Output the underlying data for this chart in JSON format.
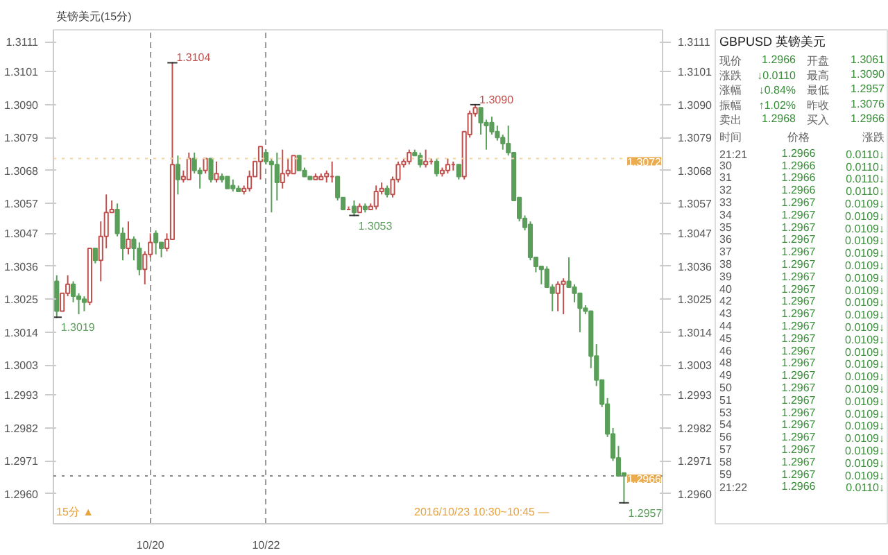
{
  "chart_data": [
    {
      "type": "candlestick",
      "title": "英镑美元(15分)",
      "categories": [
        null,
        null,
        null,
        null,
        null,
        null,
        null,
        null,
        null,
        null,
        null,
        null,
        null,
        null,
        null,
        null,
        null,
        "10/20",
        null,
        null,
        null,
        null,
        null,
        null,
        null,
        null,
        null,
        null,
        null,
        null,
        null,
        null,
        null,
        null,
        null,
        null,
        null,
        null,
        "10/22",
        null,
        null,
        null,
        null,
        null,
        null,
        null,
        null,
        null,
        null,
        null,
        null,
        null,
        null,
        null,
        null,
        null,
        null,
        null,
        null,
        null,
        null,
        null,
        null,
        null,
        null,
        null,
        null,
        null,
        null,
        null,
        null,
        null,
        null,
        null,
        null,
        null,
        null,
        null,
        null,
        null,
        null,
        null,
        null,
        null,
        null,
        null,
        null,
        null,
        null,
        null,
        null,
        null,
        null,
        null,
        null,
        null,
        null,
        null,
        null,
        null,
        null,
        null,
        null,
        null
      ],
      "ohlc": [
        [
          1.3031,
          1.3033,
          1.3019,
          1.3021
        ],
        [
          1.3021,
          1.3027,
          1.3021,
          1.3027
        ],
        [
          1.3027,
          1.3033,
          1.3026,
          1.303
        ],
        [
          1.303,
          1.3031,
          1.3024,
          1.3026
        ],
        [
          1.3026,
          1.3027,
          1.302,
          1.3025
        ],
        [
          1.3025,
          1.3026,
          1.3021,
          1.3024
        ],
        [
          1.3024,
          1.3042,
          1.3023,
          1.3042
        ],
        [
          1.3042,
          1.3042,
          1.3037,
          1.3038
        ],
        [
          1.3038,
          1.3051,
          1.3031,
          1.3046
        ],
        [
          1.3046,
          1.306,
          1.3042,
          1.3054
        ],
        [
          1.3054,
          1.3058,
          1.3054,
          1.3055
        ],
        [
          1.3055,
          1.3057,
          1.3046,
          1.3047
        ],
        [
          1.3047,
          1.3049,
          1.3038,
          1.3042
        ],
        [
          1.3042,
          1.3051,
          1.304,
          1.3045
        ],
        [
          1.3045,
          1.3046,
          1.3038,
          1.3042
        ],
        [
          1.3042,
          1.3044,
          1.3033,
          1.3035
        ],
        [
          1.3035,
          1.3041,
          1.303,
          1.304
        ],
        [
          1.304,
          1.3047,
          1.3039,
          1.3044
        ],
        [
          1.3047,
          1.3048,
          1.304,
          1.3044
        ],
        [
          1.3044,
          1.3044,
          1.3039,
          1.3042
        ],
        [
          1.3042,
          1.3047,
          1.3041,
          1.3045
        ],
        [
          1.3045,
          1.3104,
          1.3045,
          1.307
        ],
        [
          1.307,
          1.3073,
          1.306,
          1.3065
        ],
        [
          1.3065,
          1.3068,
          1.3064,
          1.3066
        ],
        [
          1.3065,
          1.3074,
          1.3065,
          1.3072
        ],
        [
          1.3072,
          1.3074,
          1.3067,
          1.3068
        ],
        [
          1.3068,
          1.3069,
          1.3062,
          1.3067
        ],
        [
          1.3068,
          1.3072,
          1.3067,
          1.3072
        ],
        [
          1.3072,
          1.3072,
          1.3064,
          1.3065
        ],
        [
          1.3065,
          1.3071,
          1.3064,
          1.3067
        ],
        [
          1.3066,
          1.3067,
          1.3064,
          1.3065
        ],
        [
          1.3066,
          1.3066,
          1.3062,
          1.3062
        ],
        [
          1.3063,
          1.3065,
          1.3061,
          1.3062
        ],
        [
          1.3062,
          1.3063,
          1.3061,
          1.3061
        ],
        [
          1.3061,
          1.3063,
          1.306,
          1.3062
        ],
        [
          1.3062,
          1.3068,
          1.3061,
          1.3066
        ],
        [
          1.3066,
          1.3071,
          1.3066,
          1.3071
        ],
        [
          1.3071,
          1.3076,
          1.3065,
          1.3076
        ],
        [
          1.3074,
          1.3075,
          1.307,
          1.3071
        ],
        [
          1.3071,
          1.3072,
          1.3054,
          1.307
        ],
        [
          1.307,
          1.3074,
          1.3058,
          1.3064
        ],
        [
          1.3064,
          1.3075,
          1.3062,
          1.3067
        ],
        [
          1.3067,
          1.3072,
          1.3066,
          1.3068
        ],
        [
          1.3067,
          1.3073,
          1.3067,
          1.3073
        ],
        [
          1.3073,
          1.3073,
          1.3068,
          1.3068
        ],
        [
          1.3068,
          1.3069,
          1.3066,
          1.3066
        ],
        [
          1.3066,
          1.3066,
          1.3065,
          1.3065
        ],
        [
          1.3065,
          1.3067,
          1.3065,
          1.3066
        ],
        [
          1.3065,
          1.3067,
          1.3065,
          1.3066
        ],
        [
          1.3066,
          1.3068,
          1.3064,
          1.3067
        ],
        [
          1.3066,
          1.3071,
          1.3064,
          1.3066
        ],
        [
          1.3066,
          1.3066,
          1.3058,
          1.3059
        ],
        [
          1.3059,
          1.3059,
          1.3055,
          1.3055
        ],
        [
          1.3055,
          1.3056,
          1.3055,
          1.3055
        ],
        [
          1.3056,
          1.3058,
          1.3053,
          1.3054
        ],
        [
          1.3054,
          1.3057,
          1.3054,
          1.3056
        ],
        [
          1.3056,
          1.3057,
          1.3054,
          1.3055
        ],
        [
          1.3055,
          1.3057,
          1.3055,
          1.3056
        ],
        [
          1.3056,
          1.3063,
          1.3055,
          1.3061
        ],
        [
          1.3061,
          1.3064,
          1.306,
          1.3062
        ],
        [
          1.3062,
          1.3063,
          1.3059,
          1.306
        ],
        [
          1.306,
          1.3066,
          1.3059,
          1.3065
        ],
        [
          1.3065,
          1.3071,
          1.3064,
          1.307
        ],
        [
          1.307,
          1.3072,
          1.3069,
          1.3071
        ],
        [
          1.3071,
          1.3075,
          1.307,
          1.3074
        ],
        [
          1.3074,
          1.3075,
          1.3073,
          1.3073
        ],
        [
          1.3073,
          1.3074,
          1.3069,
          1.307
        ],
        [
          1.307,
          1.3075,
          1.3069,
          1.3071
        ],
        [
          1.3071,
          1.3072,
          1.307,
          1.3071
        ],
        [
          1.3071,
          1.3072,
          1.3066,
          1.3067
        ],
        [
          1.3067,
          1.3069,
          1.3066,
          1.3068
        ],
        [
          1.3068,
          1.3072,
          1.3067,
          1.307
        ],
        [
          1.307,
          1.3071,
          1.3068,
          1.307
        ],
        [
          1.307,
          1.307,
          1.3065,
          1.3066
        ],
        [
          1.3066,
          1.3081,
          1.3065,
          1.3081
        ],
        [
          1.308,
          1.3088,
          1.3079,
          1.3087
        ],
        [
          1.3087,
          1.309,
          1.3086,
          1.3089
        ],
        [
          1.3089,
          1.3089,
          1.308,
          1.3084
        ],
        [
          1.3084,
          1.3085,
          1.3075,
          1.3083
        ],
        [
          1.3084,
          1.3086,
          1.308,
          1.3081
        ],
        [
          1.3081,
          1.3083,
          1.3078,
          1.3079
        ],
        [
          1.3079,
          1.308,
          1.3075,
          1.3077
        ],
        [
          1.3077,
          1.3083,
          1.3073,
          1.3074
        ],
        [
          1.3074,
          1.3074,
          1.3058,
          1.3058
        ],
        [
          1.3059,
          1.3059,
          1.3051,
          1.3052
        ],
        [
          1.3052,
          1.3053,
          1.3048,
          1.3049
        ],
        [
          1.305,
          1.3051,
          1.3038,
          1.3039
        ],
        [
          1.3039,
          1.3039,
          1.3034,
          1.3036
        ],
        [
          1.3036,
          1.3036,
          1.303,
          1.3035
        ],
        [
          1.3035,
          1.3036,
          1.3029,
          1.3029
        ],
        [
          1.3029,
          1.303,
          1.3021,
          1.3027
        ],
        [
          1.3027,
          1.3031,
          1.3021,
          1.303
        ],
        [
          1.303,
          1.3032,
          1.302,
          1.3031
        ],
        [
          1.3031,
          1.3039,
          1.3029,
          1.3029
        ],
        [
          1.3029,
          1.303,
          1.3024,
          1.3027
        ],
        [
          1.3027,
          1.3027,
          1.3014,
          1.3022
        ],
        [
          1.3022,
          1.3023,
          1.302,
          1.3021
        ],
        [
          1.3021,
          1.3021,
          1.3002,
          1.3006
        ],
        [
          1.3006,
          1.301,
          1.2996,
          1.2998
        ],
        [
          1.2998,
          1.2998,
          1.2989,
          1.299
        ],
        [
          1.299,
          1.2992,
          1.2979,
          1.298
        ],
        [
          1.298,
          1.2982,
          1.2971,
          1.2972
        ],
        [
          1.2972,
          1.2976,
          1.2966,
          1.2966
        ],
        [
          1.2967,
          1.2967,
          1.2957,
          1.2966
        ]
      ],
      "colors": [
        "#5a9e5a",
        "#c0504d",
        "#c0504d",
        "#5a9e5a",
        "#5a9e5a",
        "#5a9e5a",
        "#c0504d",
        "#5a9e5a",
        "#c0504d",
        "#c0504d",
        "#c0504d",
        "#5a9e5a",
        "#5a9e5a",
        "#c0504d",
        "#5a9e5a",
        "#5a9e5a",
        "#c0504d",
        "#c0504d",
        "#5a9e5a",
        "#5a9e5a",
        "#c0504d",
        "#c0504d",
        "#5a9e5a",
        "#c0504d",
        "#c0504d",
        "#5a9e5a",
        "#5a9e5a",
        "#c0504d",
        "#5a9e5a",
        "#c0504d",
        "#5a9e5a",
        "#5a9e5a",
        "#5a9e5a",
        "#5a9e5a",
        "#c0504d",
        "#c0504d",
        "#c0504d",
        "#c0504d",
        "#5a9e5a",
        "#5a9e5a",
        "#5a9e5a",
        "#c0504d",
        "#c0504d",
        "#c0504d",
        "#5a9e5a",
        "#5a9e5a",
        "#5a9e5a",
        "#c0504d",
        "#c0504d",
        "#c0504d",
        "#c0504d",
        "#5a9e5a",
        "#5a9e5a",
        "#c0504d",
        "#5a9e5a",
        "#c0504d",
        "#5a9e5a",
        "#c0504d",
        "#c0504d",
        "#c0504d",
        "#5a9e5a",
        "#c0504d",
        "#c0504d",
        "#c0504d",
        "#c0504d",
        "#5a9e5a",
        "#5a9e5a",
        "#c0504d",
        "#c0504d",
        "#5a9e5a",
        "#c0504d",
        "#c0504d",
        "#c0504d",
        "#5a9e5a",
        "#c0504d",
        "#c0504d",
        "#c0504d",
        "#5a9e5a",
        "#5a9e5a",
        "#5a9e5a",
        "#5a9e5a",
        "#5a9e5a",
        "#5a9e5a",
        "#5a9e5a",
        "#5a9e5a",
        "#5a9e5a",
        "#5a9e5a",
        "#5a9e5a",
        "#5a9e5a",
        "#5a9e5a",
        "#5a9e5a",
        "#c0504d",
        "#c0504d",
        "#5a9e5a",
        "#5a9e5a",
        "#5a9e5a",
        "#5a9e5a",
        "#5a9e5a",
        "#5a9e5a",
        "#5a9e5a",
        "#5a9e5a",
        "#5a9e5a",
        "#5a9e5a",
        "#5a9e5a"
      ],
      "ylim": [
        1.295,
        1.3115
      ],
      "yticks": [
        {
          "value": 1.296,
          "label": "1.2960"
        },
        1.2971,
        1.2982,
        1.2993,
        1.3003,
        1.3014,
        1.3025,
        1.3036,
        1.3047,
        1.3057,
        1.3068,
        1.3079,
        {
          "value": 1.309,
          "label": "1.3090"
        },
        1.3101,
        1.3111
      ],
      "y2lim": [
        1.295,
        1.3115
      ],
      "y2ticks": [
        {
          "value": 1.296,
          "label": "1.2960"
        },
        1.2971,
        1.2982,
        1.2993,
        1.3003,
        1.3014,
        1.3025,
        1.3036,
        1.3047,
        1.3057,
        1.3068,
        1.3079,
        {
          "value": 1.309,
          "label": "1.3090"
        },
        1.3101,
        1.3111
      ],
      "grid": "x",
      "ref_lines": [
        {
          "axis": "y",
          "value": 1.2966,
          "label": "1.2966",
          "line_style": "dotted",
          "color": "#888888"
        },
        {
          "axis": "y",
          "value": 1.3072,
          "label": "1.3072",
          "line_style": "dotted",
          "color": "#f3d3a0"
        }
      ],
      "annotations": [
        "1.3104",
        {
          "text": "1.3019",
          "y": 1.3019
        },
        {
          "text": "1.3053",
          "y": 1.3053
        },
        "1.3090",
        "1.2957",
        "15分 ▲",
        "2016/10/23 10:30~10:45 —"
      ]
    },
    {
      "type": "other",
      "title": "GBPUSD 英镑美元",
      "annotations": [
        "现价",
        "1.2966",
        "开盘",
        "1.3061",
        "涨跌",
        "↓0.0110",
        "最高",
        "1.3090",
        "涨幅",
        "↓0.84%",
        "最低",
        "1.2957",
        "振幅",
        "↑1.02%",
        "昨收",
        "1.3076",
        "卖出",
        "1.2968",
        "买入",
        "1.2966",
        "时间",
        "价格",
        "涨跌",
        "21:21",
        "1.2966",
        "0.0110↓",
        "30",
        "1.2966",
        "0.0110↓",
        "31",
        "1.2966",
        "0.0110↓",
        "32",
        "1.2966",
        "0.0110↓",
        "33",
        "1.2967",
        "0.0109↓",
        "34",
        "1.2967",
        "0.0109↓",
        "35",
        "1.2967",
        "0.0109↓",
        "36",
        "1.2967",
        "0.0109↓",
        "37",
        "1.2967",
        "0.0109↓",
        "38",
        "1.2967",
        "0.0109↓",
        "39",
        "1.2967",
        "0.0109↓",
        "40",
        "1.2967",
        "0.0109↓",
        "42",
        "1.2967",
        "0.0109↓",
        "43",
        "1.2967",
        "0.0109↓",
        "44",
        "1.2967",
        "0.0109↓",
        "45",
        "1.2967",
        "0.0109↓",
        "46",
        "1.2967",
        "0.0109↓",
        "48",
        "1.2967",
        "0.0109↓",
        "49",
        "1.2967",
        "0.0109↓",
        "50",
        "1.2967",
        "0.0109↓",
        "51",
        "1.2967",
        "0.0109↓",
        "53",
        "1.2967",
        "0.0109↓",
        "54",
        "1.2967",
        "0.0109↓",
        "56",
        "1.2967",
        "0.0109↓",
        "57",
        "1.2967",
        "0.0109↓",
        "58",
        "1.2967",
        "0.0109↓",
        "59",
        "1.2967",
        "0.0109↓",
        "21:22",
        "1.2966",
        "0.0110↓"
      ]
    }
  ]
}
